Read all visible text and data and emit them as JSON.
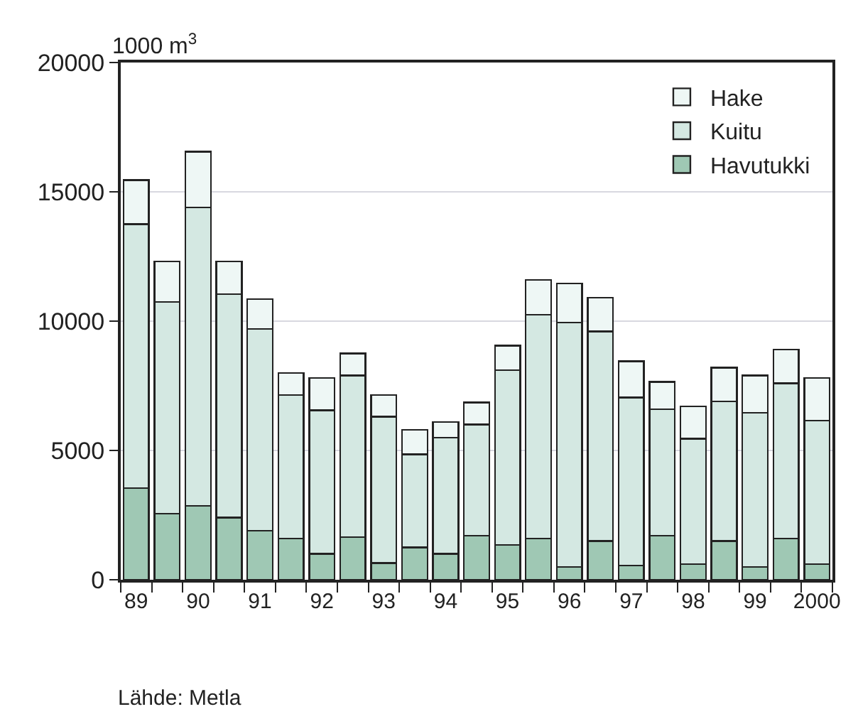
{
  "chart_data": {
    "type": "bar",
    "stacked": true,
    "ylabel": "1000 m$^{3}$",
    "categories": [
      "89",
      null,
      "90",
      null,
      "91",
      null,
      "92",
      null,
      "93",
      null,
      "94",
      null,
      "95",
      null,
      "96",
      null,
      "97",
      null,
      "98",
      null,
      "99",
      null,
      "2000"
    ],
    "series": [
      {
        "name": "Havutukki",
        "color": "#9fc8b4",
        "values": [
          3550,
          2550,
          2850,
          2400,
          1900,
          1600,
          1000,
          1650,
          650,
          1250,
          1000,
          1700,
          1350,
          1600,
          500,
          1500,
          550,
          1700,
          600,
          1500,
          500,
          1600,
          600
        ]
      },
      {
        "name": "Kuitu",
        "color": "#d4e8e2",
        "values": [
          10200,
          8200,
          11550,
          8650,
          7800,
          5550,
          5550,
          6250,
          5650,
          3600,
          4500,
          4300,
          6750,
          8650,
          9450,
          8100,
          6500,
          4900,
          4850,
          5400,
          5950,
          6000,
          5550
        ]
      },
      {
        "name": "Hake",
        "color": "#eef7f5",
        "values": [
          1700,
          1550,
          2150,
          1250,
          1150,
          850,
          1250,
          850,
          850,
          950,
          600,
          850,
          950,
          1350,
          1500,
          1300,
          1400,
          1050,
          1250,
          1300,
          1450,
          1300,
          1650
        ]
      }
    ],
    "ylim": [
      0,
      20000
    ],
    "yticks": [
      0,
      5000,
      10000,
      15000,
      20000
    ],
    "grid": "y",
    "legend": "top right",
    "annotations": [
      "Lähde: Metla"
    ]
  }
}
